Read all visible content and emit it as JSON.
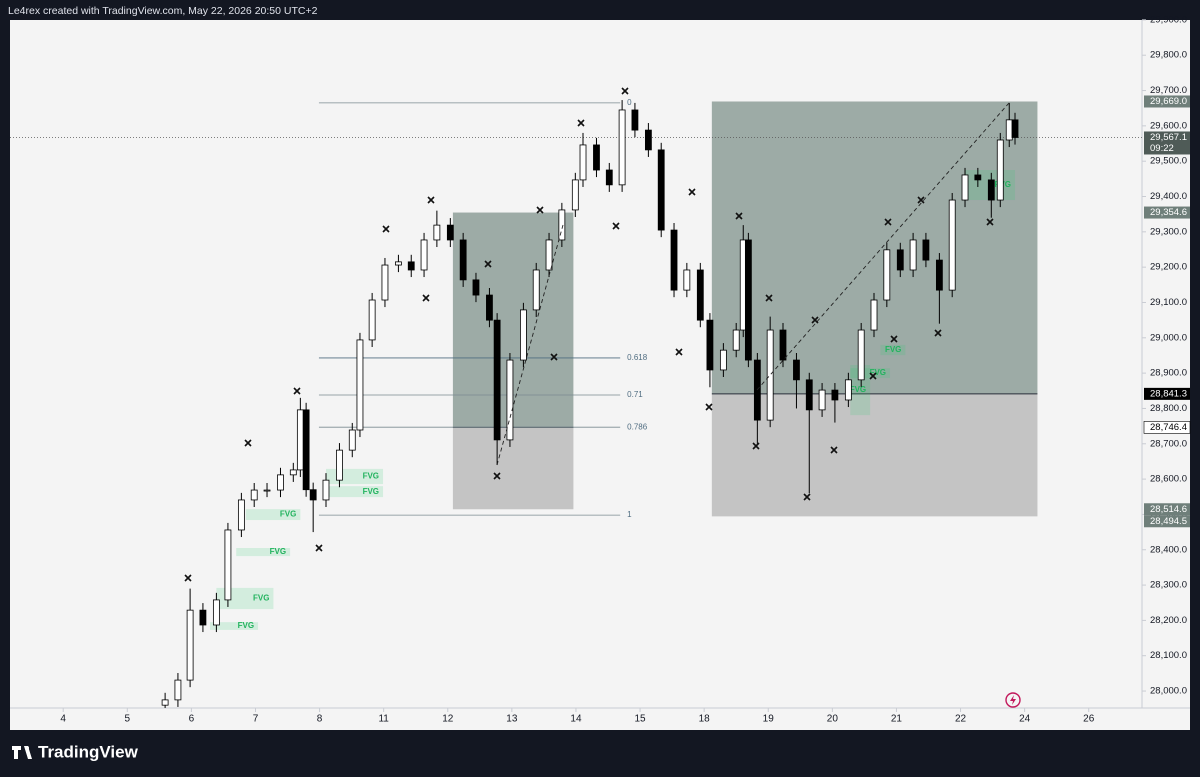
{
  "chart_data": {
    "type": "candlestick",
    "title": "Le4rex created with TradingView.com, May 22, 2026 20:50 UTC+2",
    "brand": "TradingView",
    "xlim": [
      -0.83,
      16.8
    ],
    "ylim": [
      27952,
      29928
    ],
    "xticks": [
      {
        "value": 0,
        "label": "4"
      },
      {
        "value": 1,
        "label": "5"
      },
      {
        "value": 2,
        "label": "6"
      },
      {
        "value": 3,
        "label": "7"
      },
      {
        "value": 4,
        "label": "8"
      },
      {
        "value": 5,
        "label": "11"
      },
      {
        "value": 6,
        "label": "12"
      },
      {
        "value": 7,
        "label": "13"
      },
      {
        "value": 8,
        "label": "14"
      },
      {
        "value": 9,
        "label": "15"
      },
      {
        "value": 10,
        "label": "18"
      },
      {
        "value": 11,
        "label": "19"
      },
      {
        "value": 12,
        "label": "20"
      },
      {
        "value": 13,
        "label": "21"
      },
      {
        "value": 14,
        "label": "22"
      },
      {
        "value": 15,
        "label": "24"
      },
      {
        "value": 16,
        "label": "26"
      }
    ],
    "yticks": [
      {
        "value": 28000,
        "label": "28,000.0"
      },
      {
        "value": 28100,
        "label": "28,100.0"
      },
      {
        "value": 28200,
        "label": "28,200.0"
      },
      {
        "value": 28300,
        "label": "28,300.0"
      },
      {
        "value": 28400,
        "label": "28,400.0"
      },
      {
        "value": 28500,
        "label": "28,500.0"
      },
      {
        "value": 28600,
        "label": "28,600.0"
      },
      {
        "value": 28700,
        "label": "28,700.0"
      },
      {
        "value": 28800,
        "label": "28,800.0"
      },
      {
        "value": 28900,
        "label": "28,900.0"
      },
      {
        "value": 29000,
        "label": "29,000.0"
      },
      {
        "value": 29100,
        "label": "29,100.0"
      },
      {
        "value": 29200,
        "label": "29,200.0"
      },
      {
        "value": 29300,
        "label": "29,300.0"
      },
      {
        "value": 29400,
        "label": "29,400.0"
      },
      {
        "value": 29500,
        "label": "29,500.0"
      },
      {
        "value": 29600,
        "label": "29,600.0"
      },
      {
        "value": 29700,
        "label": "29,700.0"
      },
      {
        "value": 29800,
        "label": "29,800.0"
      },
      {
        "value": 29900,
        "label": "29,900.0"
      }
    ],
    "up_color": "#ffffff",
    "down_color": "#000000",
    "series": [
      {
        "x": [
          1.59,
          1.79,
          1.98,
          2.18,
          2.39,
          2.57,
          2.78,
          2.98,
          3.18,
          3.39,
          3.59,
          3.7,
          3.79,
          3.9,
          4.1,
          4.31,
          4.51,
          4.63,
          4.82,
          5.02,
          5.23,
          5.43,
          5.63,
          5.83,
          6.04,
          6.24,
          6.44,
          6.65,
          6.77,
          6.97,
          7.18,
          7.38,
          7.58,
          7.78,
          7.99,
          8.11,
          8.32,
          8.52,
          8.72,
          8.92,
          9.13,
          9.33,
          9.53,
          9.73,
          9.94,
          10.09,
          10.3,
          10.5,
          10.61,
          10.69,
          10.83,
          11.03,
          11.23,
          11.44,
          11.64,
          11.84,
          12.04,
          12.25,
          12.45,
          12.65,
          12.85,
          13.06,
          13.26,
          13.46,
          13.67,
          13.87,
          14.07,
          14.27,
          14.48,
          14.62,
          14.76,
          14.85
        ],
        "open": [
          27960,
          27975,
          28031,
          28229,
          28187,
          28258,
          28456,
          28541,
          28569,
          28569,
          28612,
          28626,
          28796,
          28570,
          28541,
          28597,
          28682,
          28739,
          28994,
          29107,
          29206,
          29215,
          29192,
          29277,
          29319,
          29277,
          29164,
          29121,
          29050,
          28711,
          28937,
          29079,
          29192,
          29277,
          29362,
          29447,
          29546,
          29475,
          29433,
          29645,
          29588,
          29532,
          29305,
          29135,
          29192,
          29050,
          28909,
          28965,
          29022,
          29277,
          28937,
          28767,
          29022,
          28937,
          28881,
          28796,
          28852,
          28824,
          28881,
          29022,
          29107,
          29249,
          29192,
          29277,
          29220,
          29135,
          29390,
          29461,
          29447,
          29390,
          29560,
          29617
        ],
        "high": [
          27995,
          28051,
          28290,
          28249,
          28278,
          28476,
          28561,
          28589,
          28589,
          28632,
          28646,
          28830,
          28816,
          28590,
          28617,
          28702,
          28759,
          29014,
          29127,
          29226,
          29235,
          29235,
          29297,
          29360,
          29339,
          29297,
          29184,
          29141,
          29070,
          28957,
          29099,
          29212,
          29297,
          29382,
          29467,
          29580,
          29566,
          29495,
          29673,
          29665,
          29608,
          29552,
          29325,
          29212,
          29212,
          29070,
          28985,
          29042,
          29319,
          29297,
          28957,
          29060,
          29042,
          28957,
          28901,
          28872,
          28872,
          28901,
          29042,
          29127,
          29269,
          29269,
          29297,
          29297,
          29240,
          29410,
          29481,
          29481,
          29467,
          29580,
          29665,
          29637
        ],
        "low": [
          27940,
          27955,
          28011,
          28167,
          28167,
          28238,
          28436,
          28521,
          28549,
          28549,
          28592,
          28606,
          28550,
          28450,
          28521,
          28577,
          28662,
          28719,
          28974,
          29087,
          29186,
          29172,
          29172,
          29257,
          29257,
          29144,
          29101,
          29030,
          28640,
          28691,
          28917,
          29059,
          29172,
          29257,
          29342,
          29427,
          29455,
          29413,
          29413,
          29568,
          29512,
          29285,
          29115,
          29115,
          29030,
          28860,
          28889,
          28945,
          29002,
          28917,
          28700,
          28747,
          28917,
          28800,
          28560,
          28776,
          28760,
          28804,
          28861,
          29002,
          29087,
          29172,
          29172,
          29200,
          29040,
          29115,
          29370,
          29427,
          29340,
          29370,
          29540,
          29547
        ],
        "close": [
          27975,
          28031,
          28229,
          28187,
          28258,
          28456,
          28541,
          28569,
          28569,
          28612,
          28626,
          28796,
          28570,
          28541,
          28597,
          28682,
          28739,
          28994,
          29107,
          29206,
          29215,
          29192,
          29277,
          29319,
          29277,
          29164,
          29121,
          29050,
          28711,
          28937,
          29079,
          29192,
          29277,
          29362,
          29447,
          29546,
          29475,
          29433,
          29645,
          29588,
          29532,
          29305,
          29135,
          29192,
          29050,
          28909,
          28965,
          29022,
          29277,
          28937,
          28767,
          29022,
          28937,
          28881,
          28796,
          28852,
          28824,
          28881,
          29022,
          29107,
          29249,
          29192,
          29277,
          29220,
          29135,
          29390,
          29461,
          29447,
          29390,
          29560,
          29617,
          29567.1
        ]
      }
    ],
    "positions": [
      {
        "x_start": 6.08,
        "x_end": 7.96,
        "target": 29354.6,
        "entry": 28746.4,
        "stop": 28514.6
      },
      {
        "x_start": 10.12,
        "x_end": 15.2,
        "target": 29669.0,
        "entry": 28841.3,
        "stop": 28494.5
      }
    ],
    "fib": {
      "x_start": 3.99,
      "x_end": 8.69,
      "levels": [
        {
          "level": 0,
          "price": 29665
        },
        {
          "level": 0.618,
          "price": 28943
        },
        {
          "level": 0.71,
          "price": 28838
        },
        {
          "level": 0.786,
          "price": 28747
        },
        {
          "level": 1,
          "price": 28498
        }
      ]
    },
    "fvg": [
      {
        "x_start": 2.85,
        "x_end": 3.7,
        "top": 28515,
        "bottom": 28484,
        "label": "FVG"
      },
      {
        "x_start": 2.7,
        "x_end": 3.54,
        "top": 28405,
        "bottom": 28382,
        "label": "FVG"
      },
      {
        "x_start": 2.39,
        "x_end": 3.28,
        "top": 28292,
        "bottom": 28232,
        "label": "FVG"
      },
      {
        "x_start": 2.29,
        "x_end": 3.04,
        "top": 28195,
        "bottom": 28173,
        "label": "FVG"
      },
      {
        "x_start": 4.1,
        "x_end": 4.99,
        "top": 28629,
        "bottom": 28586,
        "label": "FVG"
      },
      {
        "x_start": 4.1,
        "x_end": 4.99,
        "top": 28580,
        "bottom": 28549,
        "label": "FVG"
      },
      {
        "x_start": 12.28,
        "x_end": 12.59,
        "top": 28923,
        "bottom": 28781,
        "label": "FVG"
      },
      {
        "x_start": 12.75,
        "x_end": 13.14,
        "top": 28980,
        "bottom": 28951,
        "label": "FVG"
      },
      {
        "x_start": 12.28,
        "x_end": 12.9,
        "top": 28914,
        "bottom": 28886,
        "label": "FVG"
      },
      {
        "x_start": 14.07,
        "x_end": 14.85,
        "top": 29475,
        "bottom": 29390,
        "label": "FVG"
      }
    ],
    "last_price": {
      "value": 29567.1,
      "label": "29,567.1",
      "countdown": "09:22"
    },
    "price_labels": [
      {
        "value": 29669.0,
        "label": "29,669.0",
        "style": "grey"
      },
      {
        "value": 29354.6,
        "label": "29,354.6",
        "style": "grey"
      },
      {
        "value": 28841.3,
        "label": "28,841.3",
        "style": "black"
      },
      {
        "value": 28746.4,
        "label": "28,746.4",
        "style": "white"
      },
      {
        "value": 28514.6,
        "label": "28,514.6",
        "style": "grey"
      },
      {
        "value": 28494.5,
        "label": "28,494.5",
        "style": "grey"
      }
    ]
  }
}
